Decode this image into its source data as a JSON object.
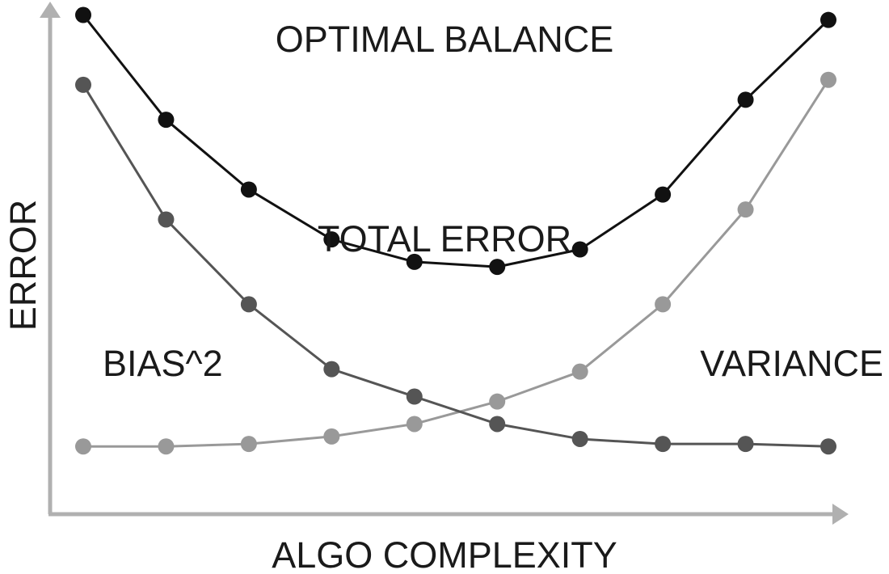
{
  "chart_data": {
    "type": "line",
    "xlabel": "ALGO COMPLEXITY",
    "ylabel": "ERROR",
    "x": [
      1,
      2,
      3,
      4,
      5,
      6,
      7,
      8,
      9,
      10
    ],
    "xlim": [
      0.5,
      10.5
    ],
    "ylim": [
      0,
      100
    ],
    "grid": false,
    "legend": "none",
    "annotations": [
      "OPTIMAL BALANCE"
    ],
    "series": [
      {
        "name": "TOTAL ERROR",
        "color": "#111111",
        "values": [
          97,
          76,
          62,
          52,
          47.5,
          46.5,
          50,
          61,
          80,
          96
        ]
      },
      {
        "name": "BIAS^2",
        "color": "#555555",
        "values": [
          83,
          56,
          39,
          26,
          20.5,
          15,
          12,
          11,
          11,
          10.5
        ]
      },
      {
        "name": "VARIANCE",
        "color": "#999999",
        "values": [
          10.5,
          10.5,
          11,
          12.5,
          15,
          19.5,
          25.5,
          39,
          58,
          84
        ]
      }
    ]
  }
}
